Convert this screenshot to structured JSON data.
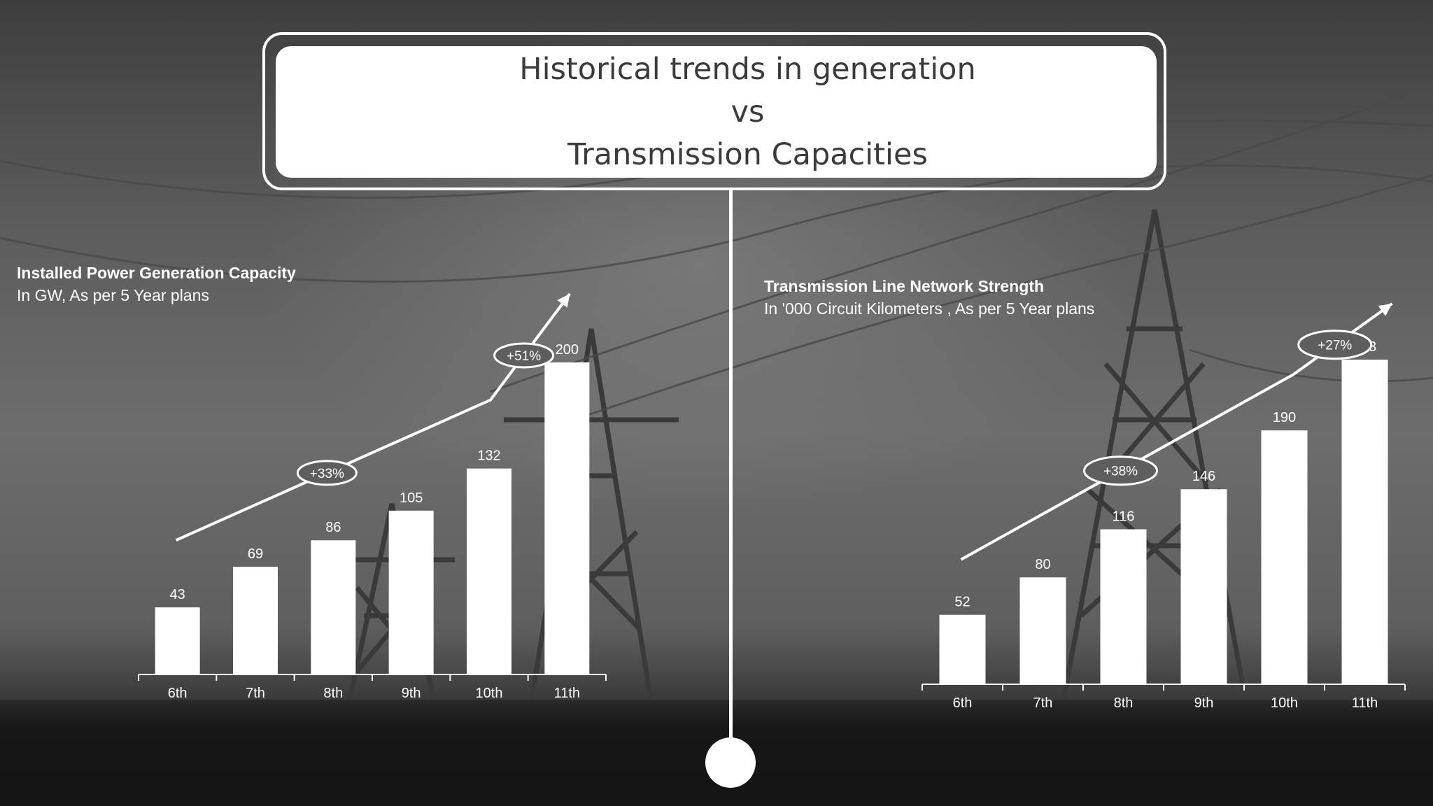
{
  "title": {
    "lines": [
      "Historical trends in generation",
      "vs",
      "Transmission Capacities"
    ]
  },
  "colors": {
    "bars": "#ffffff",
    "text_on_dark": "#ffffff",
    "title_text": "#3b3b3b",
    "background": "#5a5a5a"
  },
  "chart_data": [
    {
      "type": "bar",
      "title": "Installed Power Generation Capacity",
      "subtitle": "In GW, As per 5 Year plans",
      "categories": [
        "6th",
        "7th",
        "8th",
        "9th",
        "10th",
        "11th"
      ],
      "values": [
        43,
        69,
        86,
        105,
        132,
        200
      ],
      "data_labels": [
        "43",
        "69",
        "86",
        "105",
        "132",
        "200"
      ],
      "ylim": [
        0,
        200
      ],
      "grid": false,
      "legend": "none",
      "annotations": [
        {
          "text": "+33%",
          "from_category": "6th",
          "to_category": "10th"
        },
        {
          "text": "+51%",
          "from_category": "10th",
          "to_category": "11th"
        }
      ]
    },
    {
      "type": "bar",
      "title": "Transmission Line Network Strength",
      "subtitle": "In '000 Circuit Kilometers , As per 5 Year plans",
      "categories": [
        "6th",
        "7th",
        "8th",
        "9th",
        "10th",
        "11th"
      ],
      "values": [
        52,
        80,
        116,
        146,
        190,
        243
      ],
      "data_labels": [
        "52",
        "80",
        "116",
        "146",
        "190",
        "243"
      ],
      "ylim": [
        0,
        243
      ],
      "grid": false,
      "legend": "none",
      "annotations": [
        {
          "text": "+38%",
          "from_category": "6th",
          "to_category": "10th"
        },
        {
          "text": "+27%",
          "from_category": "10th",
          "to_category": "11th"
        }
      ]
    }
  ]
}
